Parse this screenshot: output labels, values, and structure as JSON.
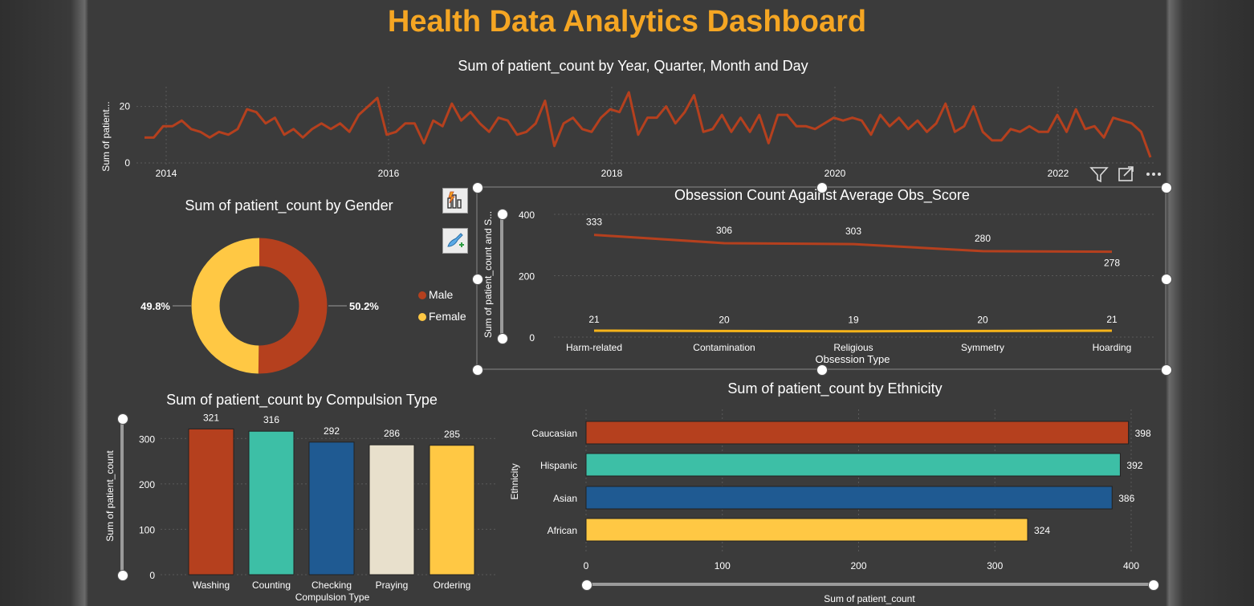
{
  "dashboard": {
    "title": "Health Data Analytics Dashboard"
  },
  "colors": {
    "title": "#f5a623",
    "red": "#b5401e",
    "teal": "#3dbfa6",
    "blue": "#1f5a92",
    "cream": "#e8e0cc",
    "yellow": "#ffc844",
    "line_yellow": "#f5b31a"
  },
  "visual_header": {
    "icons": [
      "filter-icon",
      "focus-mode-icon",
      "more-options-icon"
    ]
  },
  "format_buttons": {
    "icons": [
      "build-visual-icon",
      "format-visual-icon"
    ]
  },
  "chart_data": [
    {
      "id": "timeline",
      "type": "line",
      "title": "Sum of patient_count by Year, Quarter, Month and Day",
      "ylabel": "Sum of patient...",
      "xlabel": "",
      "x_ticks": [
        "2014",
        "2016",
        "2018",
        "2020",
        "2022"
      ],
      "y_ticks": [
        "0",
        "20"
      ],
      "ylim": [
        0,
        25
      ],
      "values": [
        9,
        9,
        13,
        13,
        15,
        12,
        11,
        9,
        11,
        10,
        12,
        19,
        18,
        14,
        16,
        10,
        12,
        9,
        12,
        14,
        12,
        14,
        11,
        17,
        20,
        23,
        10,
        11,
        14,
        14,
        7,
        15,
        13,
        21,
        15,
        18,
        14,
        11,
        16,
        15,
        10,
        11,
        14,
        22,
        6,
        14,
        16,
        12,
        11,
        16,
        19,
        18,
        25,
        10,
        16,
        16,
        20,
        14,
        18,
        24,
        11,
        12,
        17,
        11,
        16,
        11,
        17,
        7,
        17,
        17,
        13,
        13,
        12,
        14,
        16,
        15,
        16,
        15,
        10,
        17,
        13,
        16,
        12,
        15,
        11,
        14,
        21,
        11,
        13,
        20,
        11,
        8,
        8,
        12,
        11,
        13,
        11,
        11,
        17,
        11,
        19,
        12,
        13,
        9,
        16,
        15,
        14,
        11,
        2
      ],
      "grid": true
    },
    {
      "id": "gender",
      "type": "pie",
      "title": "Sum of patient_count by Gender",
      "slices": [
        {
          "name": "Male",
          "value": 50.2,
          "label": "50.2%"
        },
        {
          "name": "Female",
          "value": 49.8,
          "label": "49.8%"
        }
      ],
      "legend_position": "right"
    },
    {
      "id": "obsession",
      "type": "line",
      "title": "Obsession Count Against Average Obs_Score",
      "xlabel": "Obsession Type",
      "ylabel": "Sum of patient_count and S...",
      "categories": [
        "Harm-related",
        "Contamination",
        "Religious",
        "Symmetry",
        "Hoarding"
      ],
      "series": [
        {
          "values": [
            333,
            306,
            303,
            280,
            278
          ]
        },
        {
          "values": [
            21,
            20,
            19,
            20,
            21
          ]
        }
      ],
      "ylim": [
        0,
        400
      ],
      "y_ticks": [
        "0",
        "200",
        "400"
      ],
      "grid": true
    },
    {
      "id": "compulsion",
      "type": "bar",
      "title": "Sum of patient_count by Compulsion Type",
      "xlabel": "Compulsion Type",
      "ylabel": "Sum of patient_count",
      "categories": [
        "Washing",
        "Counting",
        "Checking",
        "Praying",
        "Ordering"
      ],
      "values": [
        321,
        316,
        292,
        286,
        285
      ],
      "ylim": [
        0,
        350
      ],
      "y_ticks": [
        "0",
        "100",
        "200",
        "300"
      ],
      "grid": true
    },
    {
      "id": "ethnicity",
      "type": "bar",
      "orientation": "horizontal",
      "title": "Sum of patient_count by Ethnicity",
      "xlabel": "Sum of patient_count",
      "ylabel": "Ethnicity",
      "categories": [
        "Caucasian",
        "Hispanic",
        "Asian",
        "African"
      ],
      "values": [
        398,
        392,
        386,
        324
      ],
      "xlim": [
        0,
        400
      ],
      "x_ticks": [
        "0",
        "100",
        "200",
        "300",
        "400"
      ],
      "grid": true
    }
  ]
}
